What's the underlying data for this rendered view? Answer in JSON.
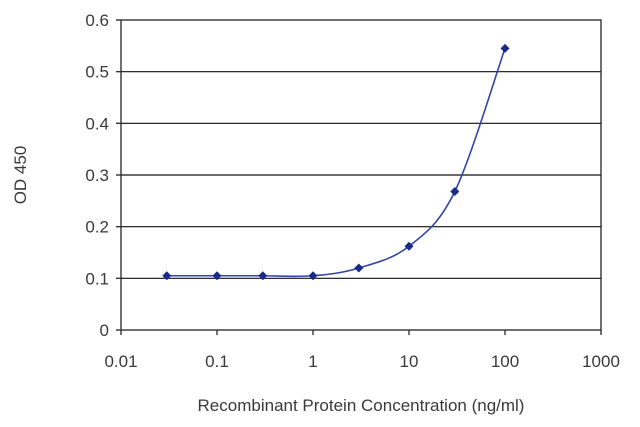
{
  "chart_data": {
    "type": "scatter",
    "title": "",
    "xlabel": "Recombinant Protein Concentration (ng/ml)",
    "ylabel": "OD 450",
    "x_scale": "log",
    "xlim": [
      0.01,
      1000
    ],
    "ylim": [
      0,
      0.6
    ],
    "x_ticks": [
      "0.01",
      "0.1",
      "1",
      "10",
      "100",
      "1000"
    ],
    "y_ticks": [
      "0",
      "0.1",
      "0.2",
      "0.3",
      "0.4",
      "0.5",
      "0.6"
    ],
    "grid": "horizontal",
    "legend": "none",
    "colors": {
      "points": "#1a2a8a",
      "curve": "#3344aa",
      "grid": "#111111"
    },
    "series": [
      {
        "x": [
          0.03,
          0.1,
          0.3,
          1,
          3,
          10,
          30,
          100
        ],
        "y": [
          0.105,
          0.105,
          0.105,
          0.105,
          0.12,
          0.162,
          0.268,
          0.545
        ]
      }
    ],
    "fit_curve": "smooth"
  }
}
